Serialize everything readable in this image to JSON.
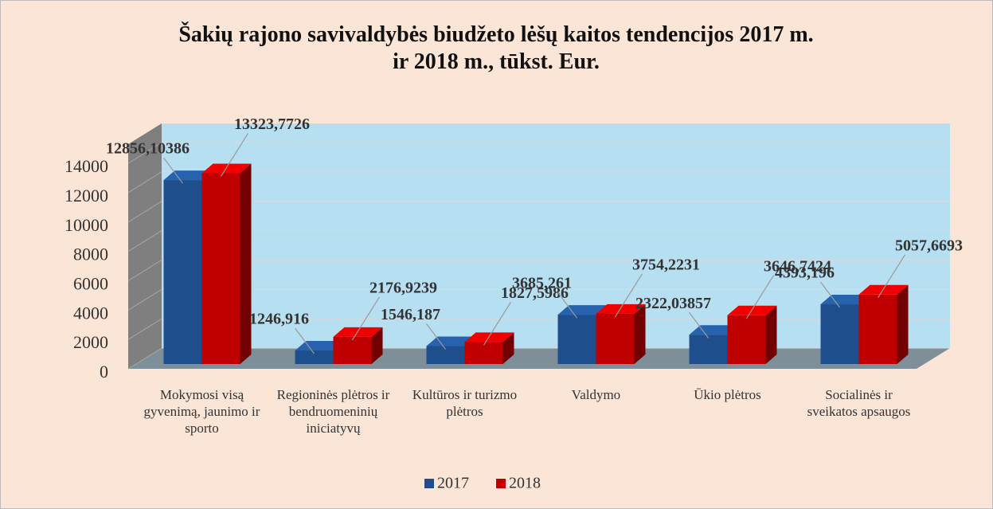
{
  "chart_data": {
    "type": "bar3d",
    "title": "Šakių rajono savivaldybės biudžeto lėšų kaitos tendencijos 2017 m. ir 2018 m., tūkst. Eur.",
    "categories": [
      "Mokymosi visą gyvenimą, jaunimo ir sporto",
      "Regioninės plėtros ir bendruomeninių iniciatyvų",
      "Kultūros ir turizmo plėtros",
      "Valdymo",
      "Ūkio plėtros",
      "Socialinės ir sveikatos apsaugos"
    ],
    "series": [
      {
        "name": "2017",
        "color": "#1f4e8c",
        "values": [
          12856.10386,
          1246.916,
          1546.187,
          3685.261,
          2322.03857,
          4393.196
        ],
        "value_labels": [
          "12856,10386",
          "1246,916",
          "1546,187",
          "3685,261",
          "2322,03857",
          "4393,196"
        ]
      },
      {
        "name": "2018",
        "color": "#c00000",
        "values": [
          13323.7726,
          2176.9239,
          1827.5986,
          3754.2231,
          3646.7424,
          5057.6693
        ],
        "value_labels": [
          "13323,7726",
          "2176,9239",
          "1827,5986",
          "3754,2231",
          "3646,7424",
          "5057,6693"
        ]
      }
    ],
    "ylim": [
      0,
      14000
    ],
    "yticks": [
      0,
      2000,
      4000,
      6000,
      8000,
      10000,
      12000,
      14000
    ],
    "grid": true,
    "legend": "bottom"
  }
}
